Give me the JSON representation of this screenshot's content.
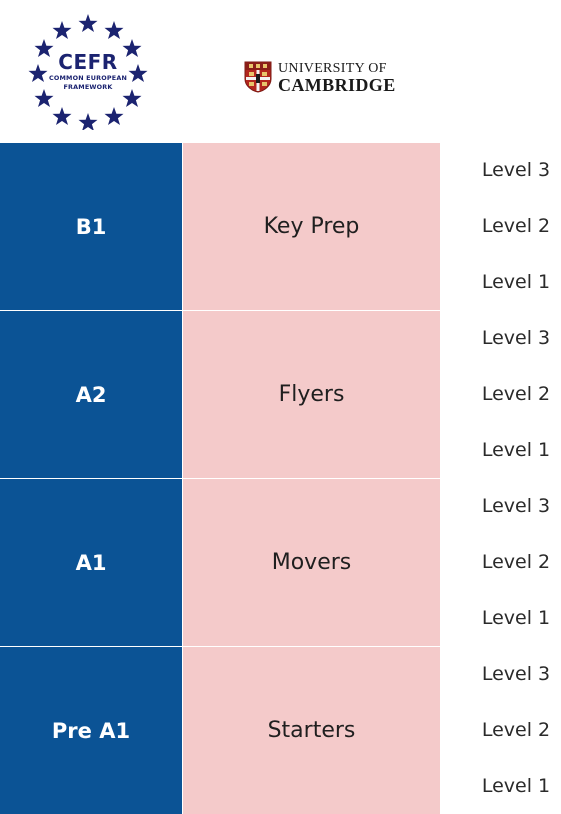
{
  "header": {
    "cefr_logo": {
      "title": "CEFR",
      "subtitle_line1": "COMMON EUROPEAN",
      "subtitle_line2": "FRAMEWORK",
      "star_color": "#1b2370"
    },
    "cambridge_logo": {
      "line1": "UNIVERSITY OF",
      "line2": "CAMBRIDGE",
      "shield_color": "#b3271e"
    }
  },
  "colors": {
    "cefr_column": "#0b5395",
    "exam_column": "#f4caca"
  },
  "rows": [
    {
      "cefr": "B1",
      "exam": "Key Prep",
      "levels": [
        "Level 3",
        "Level 2",
        "Level 1"
      ]
    },
    {
      "cefr": "A2",
      "exam": "Flyers",
      "levels": [
        "Level 3",
        "Level 2",
        "Level 1"
      ]
    },
    {
      "cefr": "A1",
      "exam": "Movers",
      "levels": [
        "Level 3",
        "Level 2",
        "Level 1"
      ]
    },
    {
      "cefr": "Pre A1",
      "exam": "Starters",
      "levels": [
        "Level 3",
        "Level 2",
        "Level 1"
      ]
    }
  ]
}
